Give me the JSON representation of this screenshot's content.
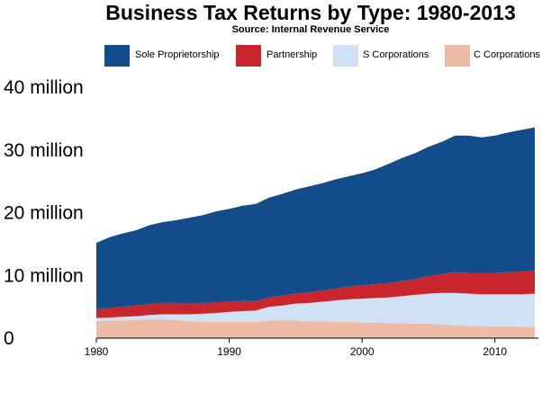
{
  "chart_data": {
    "type": "area",
    "stacked": true,
    "title": "Business Tax Returns by Type: 1980-2013",
    "subtitle": "Source: Internal Revenue Service",
    "xlabel": "",
    "ylabel": "",
    "xlim": [
      1980,
      2013
    ],
    "ylim": [
      0,
      40
    ],
    "y_ticks": [
      0,
      10,
      20,
      30,
      40
    ],
    "y_tick_labels": [
      "0",
      "10 million",
      "20 million",
      "30 million",
      "40 million"
    ],
    "x_ticks": [
      1980,
      1990,
      2000,
      2010
    ],
    "x_tick_labels": [
      "1980",
      "1990",
      "2000",
      "2010"
    ],
    "legend_position": "top",
    "grid": false,
    "x": [
      1980,
      1981,
      1982,
      1983,
      1984,
      1985,
      1986,
      1987,
      1988,
      1989,
      1990,
      1991,
      1992,
      1993,
      1994,
      1995,
      1996,
      1997,
      1998,
      1999,
      2000,
      2001,
      2002,
      2003,
      2004,
      2005,
      2006,
      2007,
      2008,
      2009,
      2010,
      2011,
      2012,
      2013
    ],
    "series": [
      {
        "name": "C Corporations",
        "color": "#eebca6",
        "values": [
          2.7,
          2.8,
          2.8,
          2.9,
          3.0,
          3.0,
          2.9,
          2.7,
          2.6,
          2.6,
          2.6,
          2.6,
          2.6,
          2.8,
          2.8,
          2.8,
          2.7,
          2.7,
          2.6,
          2.6,
          2.5,
          2.5,
          2.4,
          2.4,
          2.3,
          2.3,
          2.2,
          2.1,
          2.0,
          1.9,
          1.9,
          1.9,
          1.8,
          1.8
        ]
      },
      {
        "name": "S Corporations",
        "color": "#cfe1f2",
        "values": [
          0.5,
          0.5,
          0.6,
          0.6,
          0.7,
          0.8,
          0.9,
          1.1,
          1.3,
          1.4,
          1.6,
          1.7,
          1.8,
          2.2,
          2.4,
          2.7,
          2.9,
          3.1,
          3.4,
          3.6,
          3.8,
          3.9,
          4.1,
          4.3,
          4.6,
          4.8,
          5.0,
          5.1,
          5.1,
          5.1,
          5.1,
          5.1,
          5.2,
          5.3
        ]
      },
      {
        "name": "Partnership",
        "color": "#c8262c",
        "values": [
          1.4,
          1.5,
          1.6,
          1.7,
          1.7,
          1.8,
          1.8,
          1.7,
          1.7,
          1.7,
          1.6,
          1.6,
          1.5,
          1.5,
          1.6,
          1.6,
          1.7,
          1.8,
          1.9,
          2.0,
          2.1,
          2.2,
          2.3,
          2.4,
          2.5,
          2.8,
          3.0,
          3.3,
          3.3,
          3.4,
          3.4,
          3.5,
          3.6,
          3.7
        ]
      },
      {
        "name": "Sole Proprietorship",
        "color": "#134c8a",
        "values": [
          10.6,
          11.3,
          11.7,
          12.0,
          12.6,
          12.9,
          13.2,
          13.7,
          14.0,
          14.5,
          14.8,
          15.2,
          15.5,
          15.9,
          16.2,
          16.6,
          16.9,
          17.1,
          17.4,
          17.6,
          17.9,
          18.3,
          19.0,
          19.6,
          20.1,
          20.6,
          21.1,
          21.8,
          21.9,
          21.6,
          21.9,
          22.3,
          22.6,
          22.8
        ]
      }
    ]
  }
}
